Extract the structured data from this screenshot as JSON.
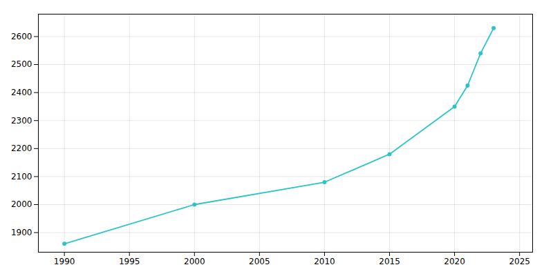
{
  "chart_data": {
    "type": "line",
    "x": [
      1990,
      2000,
      2010,
      2015,
      2020,
      2021,
      2022,
      2023
    ],
    "values": [
      1860,
      2000,
      2080,
      2180,
      2350,
      2425,
      2540,
      2630
    ],
    "color": "#2BC5C8",
    "marker": "circle",
    "xlim": [
      1988,
      2026
    ],
    "ylim": [
      1830,
      2680
    ],
    "xticks": [
      1990,
      1995,
      2000,
      2005,
      2010,
      2015,
      2020,
      2025
    ],
    "yticks": [
      1900,
      2000,
      2100,
      2200,
      2300,
      2400,
      2500,
      2600
    ],
    "grid": true
  }
}
